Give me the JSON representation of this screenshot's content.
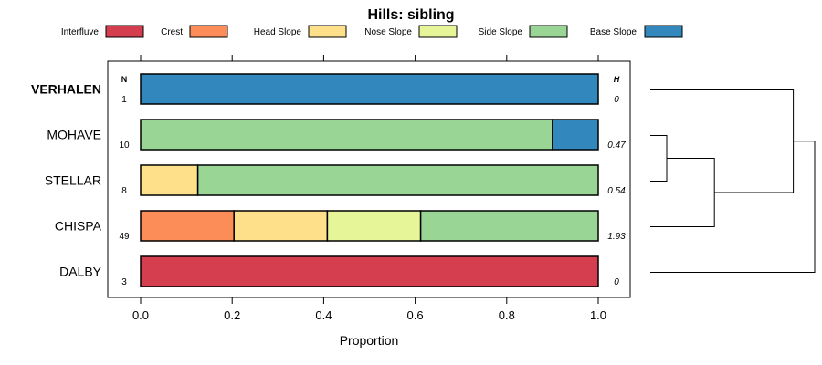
{
  "chart_data": {
    "type": "bar",
    "orientation": "horizontal",
    "stacked": true,
    "title": "Hills: sibling",
    "xlabel": "Proportion",
    "xlim": [
      -0.07,
      1.07
    ],
    "x_ticks": [
      0.0,
      0.2,
      0.4,
      0.6,
      0.8,
      1.0
    ],
    "x_tick_labels": [
      "0.0",
      "0.2",
      "0.4",
      "0.6",
      "0.8",
      "1.0"
    ],
    "n_header": "N",
    "h_header": "H",
    "legend": [
      {
        "name": "Interfluve",
        "color": "#D53E4F"
      },
      {
        "name": "Crest",
        "color": "#FC8D59"
      },
      {
        "name": "Head Slope",
        "color": "#FEE08B"
      },
      {
        "name": "Nose Slope",
        "color": "#E6F598"
      },
      {
        "name": "Side Slope",
        "color": "#99D594"
      },
      {
        "name": "Base Slope",
        "color": "#3288BD"
      }
    ],
    "categories": [
      "VERHALEN",
      "MOHAVE",
      "STELLAR",
      "CHISPA",
      "DALBY"
    ],
    "highlight": "VERHALEN",
    "n": [
      "1",
      "10",
      "8",
      "49",
      "3"
    ],
    "h": [
      "0",
      "0.47",
      "0.54",
      "1.93",
      "0"
    ],
    "series": [
      {
        "name": "Interfluve",
        "values": [
          0,
          0,
          0,
          0,
          1.0
        ]
      },
      {
        "name": "Crest",
        "values": [
          0,
          0,
          0,
          0.204,
          0
        ]
      },
      {
        "name": "Head Slope",
        "values": [
          0,
          0,
          0.125,
          0.204,
          0
        ]
      },
      {
        "name": "Nose Slope",
        "values": [
          0,
          0,
          0,
          0.204,
          0
        ]
      },
      {
        "name": "Side Slope",
        "values": [
          0,
          0.9,
          0.875,
          0.388,
          0
        ]
      },
      {
        "name": "Base Slope",
        "values": [
          1.0,
          0.1,
          0,
          0,
          0
        ]
      }
    ],
    "dendrogram": {
      "type": "hierarchical-clustering",
      "merges": [
        {
          "left": "MOHAVE",
          "right": "STELLAR",
          "height": 0.1
        },
        {
          "left": "MOHAVE+STELLAR",
          "right": "CHISPA",
          "height": 0.39
        },
        {
          "left": "VERHALEN",
          "right": "MOHAVE+STELLAR+CHISPA",
          "height": 0.87
        },
        {
          "left": "VERHALEN+MOHAVE+STELLAR+CHISPA",
          "right": "DALBY",
          "height": 1.0
        }
      ]
    }
  }
}
